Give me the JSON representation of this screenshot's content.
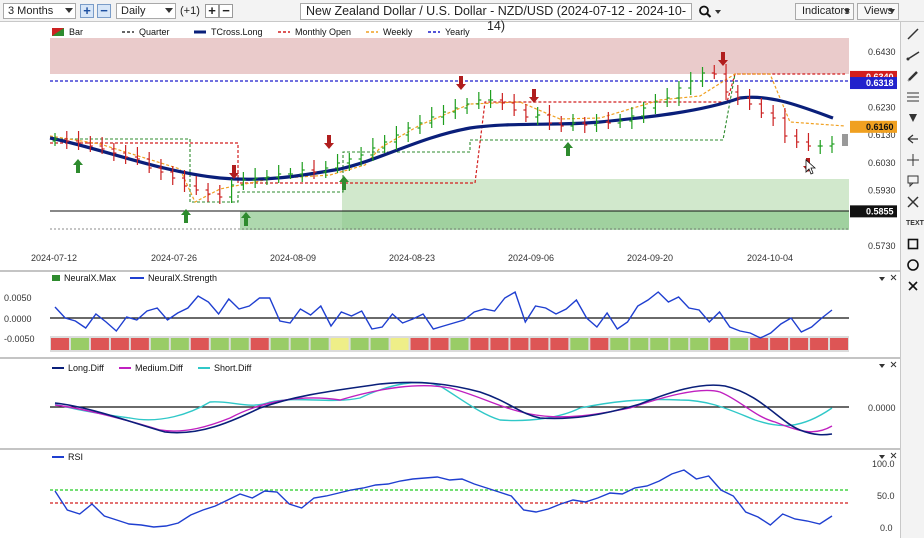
{
  "toolbar": {
    "range_value": "3 Months",
    "zoom_in_symbol": "+",
    "zoom_out_symbol": "−",
    "interval_value": "Daily",
    "offset_label": "(+1)",
    "increase_symbol": "+",
    "decrease_symbol": "−",
    "chart_title": "New Zealand Dollar / U.S. Dollar - NZD/USD (2024-07-12 - 2024-10-14)",
    "search_icon": "magnifier-icon",
    "indicators_label": "Indicators",
    "views_label": "Views"
  },
  "main_panel": {
    "legend": [
      {
        "label": "Bar",
        "color": "#2e8b2e"
      },
      {
        "label": "Quarter",
        "color": "#333333"
      },
      {
        "label": "TCross.Long",
        "color": "#0a1f7a"
      },
      {
        "label": "Monthly Open",
        "color": "#d21e1e"
      },
      {
        "label": "Weekly",
        "color": "#f0a020"
      },
      {
        "label": "Yearly",
        "color": "#1a1acc"
      }
    ],
    "price_ticks": [
      "0.6430",
      "0.6230",
      "0.6130",
      "0.6030",
      "0.5930",
      "0.5730"
    ],
    "value_labels": [
      {
        "text": "0.6340",
        "price": 0.634,
        "color": "#d21e1e"
      },
      {
        "text": "0.6318",
        "price": 0.6318,
        "color": "#2222cc"
      },
      {
        "text": "0.6160",
        "price": 0.616,
        "color": "#f0a020"
      },
      {
        "text": "0.5855",
        "price": 0.5855,
        "color": "#111111"
      }
    ],
    "date_ticks": [
      "2024-07-12",
      "2024-07-26",
      "2024-08-09",
      "2024-08-23",
      "2024-09-06",
      "2024-09-20",
      "2024-10-04"
    ]
  },
  "panel_neuralx": {
    "legend": [
      {
        "label": "NeuralX.Max",
        "color": "#2e8b2e"
      },
      {
        "label": "NeuralX.Strength",
        "color": "#1f3fd0"
      }
    ],
    "ticks": [
      "0.0050",
      "0.0000",
      "-0.0050"
    ],
    "bar_colors": [
      "#d55",
      "#9c6",
      "#d55",
      "#d55",
      "#d55",
      "#9c6",
      "#9c6",
      "#d55",
      "#9c6",
      "#9c6",
      "#d55",
      "#9c6",
      "#9c6",
      "#9c6",
      "#ee8",
      "#9c6",
      "#9c6",
      "#ee8",
      "#d55",
      "#d55",
      "#9c6",
      "#d55",
      "#d55",
      "#d55",
      "#d55",
      "#d55",
      "#9c6",
      "#d55",
      "#9c6",
      "#9c6",
      "#9c6",
      "#9c6",
      "#9c6",
      "#d55",
      "#9c6",
      "#d55",
      "#d55",
      "#d55",
      "#d55",
      "#d55"
    ]
  },
  "panel_diff": {
    "legend": [
      {
        "label": "Long.Diff",
        "color": "#0a1f7a"
      },
      {
        "label": "Medium.Diff",
        "color": "#c020c0"
      },
      {
        "label": "Short.Diff",
        "color": "#30c8c8"
      }
    ],
    "ticks": [
      "0.0000"
    ]
  },
  "panel_rsi": {
    "legend": [
      {
        "label": "RSI",
        "color": "#1f3fd0"
      }
    ],
    "ticks": [
      "100.0",
      "50.0",
      "0.0"
    ]
  },
  "sidebar": {
    "tools": [
      "line-icon",
      "ray-icon",
      "pencil-icon",
      "fibonacci-icon",
      "text-arrow-icon",
      "fork-icon",
      "rectangle-icon",
      "speech-bubble-icon",
      "icon-ruler",
      "text-tool-icon",
      "square-icon",
      "circle-icon",
      "close-icon"
    ],
    "text_tool_label": "TEXT"
  }
}
